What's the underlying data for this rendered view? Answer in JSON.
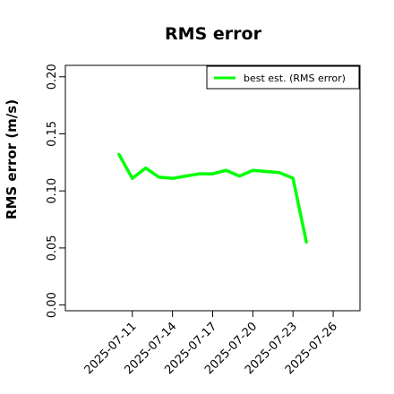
{
  "chart_data": {
    "type": "line",
    "title": "RMS error",
    "xlabel": "",
    "ylabel": "RMS error (m/s)",
    "x_tick_labels": [
      "2025-07-11",
      "2025-07-14",
      "2025-07-17",
      "2025-07-20",
      "2025-07-23",
      "2025-07-26"
    ],
    "x_tick_colors": [
      "#000000",
      "#000000",
      "#228b22",
      "#000000",
      "#000000",
      "#000000"
    ],
    "xlim": [
      "2025-07-06",
      "2025-07-28"
    ],
    "y_tick_labels": [
      "0.00",
      "0.05",
      "0.10",
      "0.15",
      "0.20"
    ],
    "ylim": [
      -0.005,
      0.21
    ],
    "grid": false,
    "legend_position": "top-right",
    "series": [
      {
        "name": "best est. (RMS error)",
        "color": "#00ff00",
        "x": [
          "2025-07-10",
          "2025-07-11",
          "2025-07-12",
          "2025-07-13",
          "2025-07-14",
          "2025-07-15",
          "2025-07-16",
          "2025-07-17",
          "2025-07-18",
          "2025-07-19",
          "2025-07-20",
          "2025-07-21",
          "2025-07-22",
          "2025-07-23",
          "2025-07-24"
        ],
        "y": [
          0.132,
          0.111,
          0.12,
          0.112,
          0.111,
          0.113,
          0.115,
          0.115,
          0.118,
          0.113,
          0.118,
          0.117,
          0.116,
          0.111,
          0.055
        ]
      }
    ]
  }
}
